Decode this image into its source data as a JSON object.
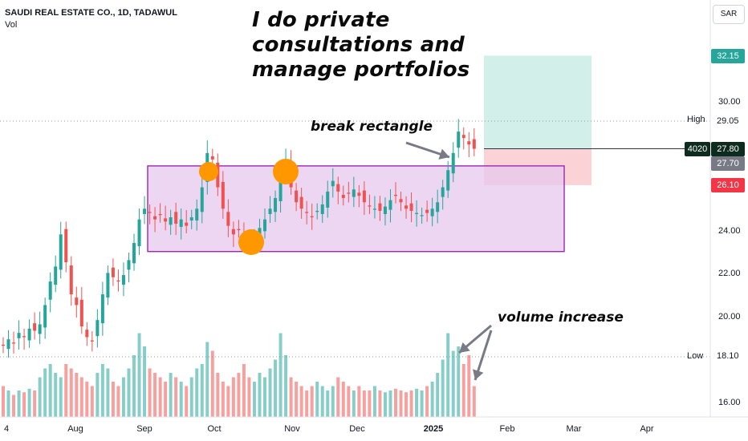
{
  "header": {
    "symbol_line": "SAUDI REAL ESTATE CO., 1D, TADAWUL",
    "volume_label": "Vol",
    "currency": "SAR"
  },
  "annotations": {
    "headline_lines": [
      "I do private",
      "consultations and",
      "manage portfolios"
    ],
    "break_label": "break rectangle",
    "volume_label": "volume increase"
  },
  "price_labels": {
    "target": "32.15",
    "high_label": "High",
    "high_value": "29.05",
    "current_code": "4020",
    "current_price": "27.80",
    "second_price": "27.70",
    "stop": "26.10",
    "low_label": "Low",
    "low_value": "18.10"
  },
  "colors": {
    "up": "#26a69a",
    "down": "#ef5350",
    "rectangle_fill": "#e6c8ee",
    "rectangle_border": "#9c27b0",
    "marker": "#ff9800",
    "profit_zone": "#d2efe9",
    "loss_zone": "#fbd3d6",
    "target_badge": "#26a69a",
    "stop_badge": "#f23645",
    "current_badge": "#0d2b1f"
  },
  "chart_data": {
    "type": "candlestick",
    "y_ticks": [
      "30.00",
      "24.00",
      "22.00",
      "20.00",
      "16.00"
    ],
    "x_ticks": [
      "4",
      "Aug",
      "Sep",
      "Oct",
      "Nov",
      "Dec",
      "2025",
      "Feb",
      "Mar",
      "Apr"
    ],
    "ylim": [
      15.5,
      34.5
    ],
    "grid": false,
    "price_path": [
      18.6,
      18.9,
      18.7,
      19.2,
      19.0,
      19.4,
      19.3,
      19.6,
      20.5,
      21.6,
      22.3,
      23.8,
      22.5,
      21.0,
      20.5,
      19.5,
      19.0,
      18.8,
      19.8,
      21.0,
      22.0,
      21.8,
      21.6,
      21.9,
      22.6,
      23.4,
      24.5,
      25.0,
      24.8,
      24.5,
      24.7,
      24.4,
      24.6,
      24.3,
      24.5,
      24.2,
      24.6,
      25.0,
      26.0,
      27.6,
      27.3,
      26.0,
      25.0,
      24.2,
      23.8,
      24.0,
      23.6,
      23.4,
      23.7,
      24.1,
      24.5,
      25.0,
      25.5,
      26.5,
      27.3,
      26.0,
      25.3,
      25.0,
      24.8,
      24.6,
      24.9,
      25.2,
      25.8,
      26.3,
      25.8,
      25.5,
      25.7,
      25.9,
      25.6,
      25.3,
      25.1,
      25.0,
      24.9,
      25.1,
      25.4,
      25.6,
      25.3,
      25.0,
      24.9,
      24.8,
      24.7,
      24.8,
      25.0,
      25.3,
      26.0,
      26.8,
      27.6,
      28.6,
      28.3,
      28.0,
      27.8
    ],
    "volume_relative": [
      0.35,
      0.3,
      0.25,
      0.3,
      0.28,
      0.32,
      0.3,
      0.45,
      0.55,
      0.6,
      0.5,
      0.45,
      0.6,
      0.55,
      0.5,
      0.45,
      0.4,
      0.35,
      0.5,
      0.6,
      0.55,
      0.4,
      0.35,
      0.45,
      0.55,
      0.7,
      0.95,
      0.8,
      0.55,
      0.5,
      0.45,
      0.4,
      0.5,
      0.45,
      0.4,
      0.35,
      0.45,
      0.55,
      0.6,
      0.85,
      0.75,
      0.5,
      0.4,
      0.35,
      0.45,
      0.5,
      0.6,
      0.45,
      0.4,
      0.5,
      0.45,
      0.55,
      0.65,
      0.95,
      0.7,
      0.45,
      0.4,
      0.35,
      0.3,
      0.35,
      0.4,
      0.35,
      0.3,
      0.35,
      0.45,
      0.4,
      0.35,
      0.3,
      0.35,
      0.3,
      0.3,
      0.35,
      0.3,
      0.28,
      0.3,
      0.32,
      0.3,
      0.28,
      0.3,
      0.32,
      0.3,
      0.35,
      0.4,
      0.5,
      0.65,
      0.95,
      0.75,
      0.8,
      0.6,
      0.7,
      0.35
    ],
    "rectangle": {
      "top": 27.0,
      "bottom": 23.0
    },
    "long_position": {
      "entry": 27.8,
      "target": 32.15,
      "stop": 26.1
    }
  }
}
